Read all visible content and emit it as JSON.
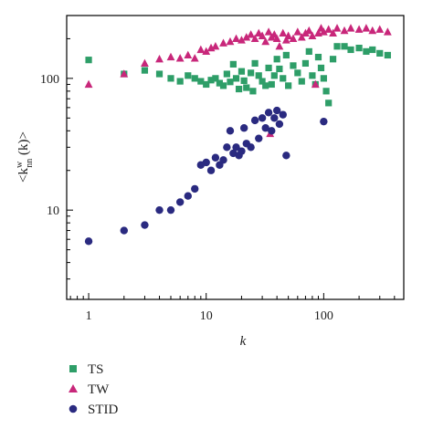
{
  "chart_data": {
    "type": "scatter",
    "xscale": "log",
    "yscale": "log",
    "xlim": [
      0.65,
      480
    ],
    "ylim": [
      2.1,
      300
    ],
    "xticks": [
      1,
      10,
      100
    ],
    "yticks": [
      10,
      100
    ],
    "xtick_labels": [
      "1",
      "10",
      "100"
    ],
    "ytick_labels": [
      "10",
      "100"
    ],
    "xlabel": "k",
    "ylabel": {
      "base": "<k",
      "sup": "w",
      "sub": "nn",
      "tail": " (k)>"
    },
    "legend_position": "bottom-left",
    "grid": false,
    "series": [
      {
        "name": "TS",
        "marker": "square",
        "color": "#2e9e68",
        "points": [
          [
            1,
            138
          ],
          [
            2,
            108
          ],
          [
            3,
            115
          ],
          [
            4,
            108
          ],
          [
            5,
            100
          ],
          [
            6,
            95
          ],
          [
            7,
            105
          ],
          [
            8,
            100
          ],
          [
            9,
            95
          ],
          [
            10,
            90
          ],
          [
            11,
            97
          ],
          [
            12,
            100
          ],
          [
            13,
            92
          ],
          [
            14,
            88
          ],
          [
            15,
            108
          ],
          [
            16,
            94
          ],
          [
            17,
            128
          ],
          [
            18,
            100
          ],
          [
            19,
            83
          ],
          [
            20,
            113
          ],
          [
            21,
            96
          ],
          [
            22,
            85
          ],
          [
            24,
            110
          ],
          [
            25,
            80
          ],
          [
            26,
            130
          ],
          [
            28,
            105
          ],
          [
            30,
            95
          ],
          [
            32,
            88
          ],
          [
            34,
            120
          ],
          [
            36,
            90
          ],
          [
            38,
            105
          ],
          [
            40,
            140
          ],
          [
            42,
            118
          ],
          [
            45,
            100
          ],
          [
            48,
            150
          ],
          [
            50,
            88
          ],
          [
            55,
            125
          ],
          [
            60,
            110
          ],
          [
            65,
            95
          ],
          [
            70,
            130
          ],
          [
            75,
            160
          ],
          [
            80,
            105
          ],
          [
            85,
            90
          ],
          [
            90,
            145
          ],
          [
            95,
            120
          ],
          [
            100,
            100
          ],
          [
            105,
            80
          ],
          [
            110,
            65
          ],
          [
            120,
            140
          ],
          [
            130,
            175
          ],
          [
            150,
            175
          ],
          [
            170,
            165
          ],
          [
            200,
            170
          ],
          [
            230,
            160
          ],
          [
            260,
            165
          ],
          [
            300,
            155
          ],
          [
            350,
            150
          ]
        ]
      },
      {
        "name": "TW",
        "marker": "triangle",
        "color": "#c8277a",
        "points": [
          [
            1,
            90
          ],
          [
            2,
            108
          ],
          [
            3,
            130
          ],
          [
            4,
            140
          ],
          [
            5,
            145
          ],
          [
            6,
            142
          ],
          [
            7,
            150
          ],
          [
            8,
            142
          ],
          [
            9,
            165
          ],
          [
            10,
            160
          ],
          [
            11,
            170
          ],
          [
            12,
            175
          ],
          [
            14,
            185
          ],
          [
            16,
            190
          ],
          [
            18,
            200
          ],
          [
            20,
            195
          ],
          [
            22,
            205
          ],
          [
            24,
            215
          ],
          [
            26,
            200
          ],
          [
            28,
            220
          ],
          [
            30,
            210
          ],
          [
            32,
            190
          ],
          [
            34,
            225
          ],
          [
            36,
            205
          ],
          [
            38,
            215
          ],
          [
            40,
            200
          ],
          [
            42,
            175
          ],
          [
            45,
            220
          ],
          [
            48,
            195
          ],
          [
            50,
            210
          ],
          [
            55,
            200
          ],
          [
            60,
            225
          ],
          [
            65,
            205
          ],
          [
            70,
            220
          ],
          [
            75,
            230
          ],
          [
            80,
            210
          ],
          [
            85,
            90
          ],
          [
            90,
            220
          ],
          [
            95,
            240
          ],
          [
            100,
            225
          ],
          [
            110,
            235
          ],
          [
            120,
            220
          ],
          [
            130,
            240
          ],
          [
            150,
            230
          ],
          [
            170,
            240
          ],
          [
            200,
            235
          ],
          [
            230,
            240
          ],
          [
            260,
            230
          ],
          [
            300,
            235
          ],
          [
            350,
            225
          ],
          [
            35,
            38
          ]
        ]
      },
      {
        "name": "STID",
        "marker": "circle",
        "color": "#2a2a80",
        "points": [
          [
            1,
            5.8
          ],
          [
            2,
            7
          ],
          [
            3,
            7.7
          ],
          [
            4,
            10
          ],
          [
            5,
            10
          ],
          [
            6,
            11.5
          ],
          [
            7,
            12.8
          ],
          [
            8,
            14.5
          ],
          [
            9,
            22
          ],
          [
            10,
            23
          ],
          [
            11,
            20
          ],
          [
            12,
            25
          ],
          [
            13,
            22
          ],
          [
            14,
            24
          ],
          [
            15,
            30
          ],
          [
            16,
            40
          ],
          [
            17,
            27
          ],
          [
            18,
            30
          ],
          [
            19,
            26
          ],
          [
            20,
            28
          ],
          [
            21,
            42
          ],
          [
            22,
            32
          ],
          [
            24,
            30
          ],
          [
            26,
            48
          ],
          [
            28,
            35
          ],
          [
            30,
            50
          ],
          [
            32,
            42
          ],
          [
            34,
            55
          ],
          [
            36,
            40
          ],
          [
            38,
            50
          ],
          [
            40,
            57
          ],
          [
            42,
            45
          ],
          [
            45,
            53
          ],
          [
            48,
            26
          ],
          [
            100,
            47
          ]
        ]
      }
    ]
  }
}
